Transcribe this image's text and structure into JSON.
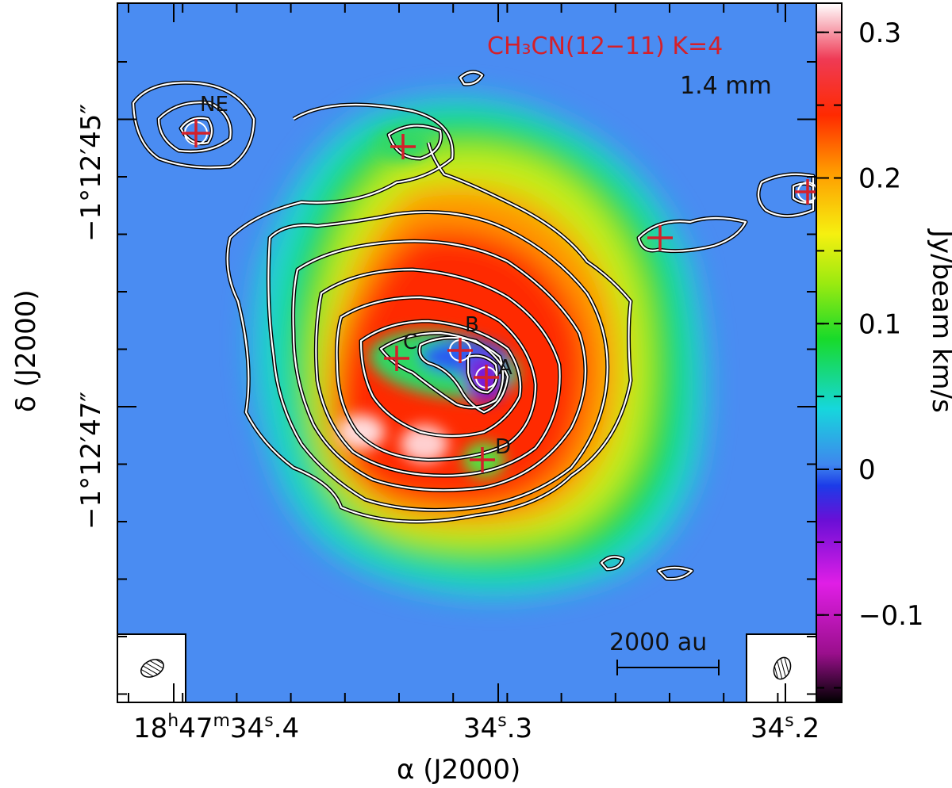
{
  "chart_data": {
    "type": "heatmap",
    "title": "",
    "molecule_label": "CH₃CN(12−11) K=4",
    "band_label": "1.4 mm",
    "xlabel": "α (J2000)",
    "ylabel": "δ (J2000)",
    "x_ticks": [
      {
        "h": "18",
        "m": "47",
        "s": "34",
        "frac": "4",
        "label": "18h47m34s.4"
      },
      {
        "s": "34",
        "frac": "3",
        "label": "34s.3"
      },
      {
        "s": "34",
        "frac": "2",
        "label": "34s.2"
      }
    ],
    "y_ticks": [
      "−1°12′45″",
      "−1°12′47″"
    ],
    "colorbar": {
      "label": "Jy/beam km/s",
      "range": [
        -0.16,
        0.32
      ],
      "ticks": [
        "0.3",
        "0.2",
        "0.1",
        "0",
        "−0.1"
      ],
      "tick_values": [
        0.3,
        0.2,
        0.1,
        0.0,
        -0.1
      ]
    },
    "sources": [
      {
        "name": "A"
      },
      {
        "name": "B"
      },
      {
        "name": "C"
      },
      {
        "name": "D"
      },
      {
        "name": "NE"
      }
    ],
    "scalebar_label": "2000 au",
    "colors": {
      "background": "#4a8cf2",
      "mol_label": "#d4202a",
      "marker": "#d4202a"
    }
  }
}
